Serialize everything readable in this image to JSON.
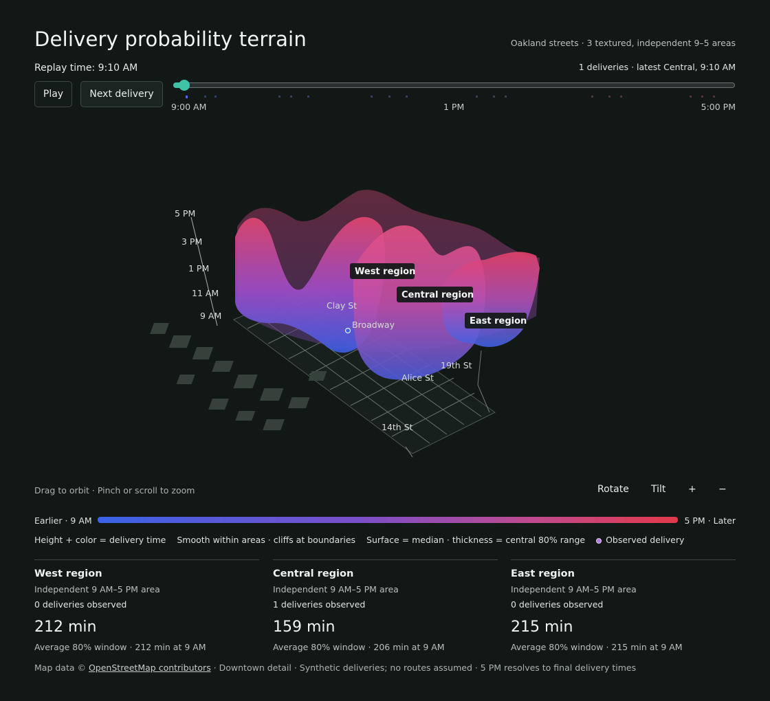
{
  "header": {
    "title": "Delivery probability terrain",
    "subtitle": "Oakland streets · 3 textured, independent 9–5 areas",
    "replay_time": "Replay time: 9:10 AM",
    "deliveries_status": "1 deliveries · latest Central, 9:10 AM"
  },
  "controls": {
    "play_label": "Play",
    "next_label": "Next delivery",
    "slider": {
      "value_fraction": 0.02,
      "tick_labels": [
        "9:00 AM",
        "1 PM",
        "5:00 PM"
      ]
    }
  },
  "terrain": {
    "axis_labels": [
      "5 PM",
      "3 PM",
      "1 PM",
      "11 AM",
      "9 AM"
    ],
    "region_tags": [
      "West region",
      "Central region",
      "East region"
    ],
    "street_labels": [
      "Clay St",
      "Broadway",
      "19th St",
      "Alice St",
      "14th St"
    ]
  },
  "hint": "Drag to orbit · Pinch or scroll to zoom",
  "view_controls": {
    "rotate": "Rotate",
    "tilt": "Tilt",
    "zoom_in": "+",
    "zoom_out": "−"
  },
  "legend": {
    "start": "Earlier · 9 AM",
    "end": "5 PM · Later",
    "colors": [
      "#3a63e6",
      "#7a4fc9",
      "#c04a8e",
      "#e2394a"
    ],
    "notes": [
      "Height + color = delivery time",
      "Smooth within areas · cliffs at boundaries",
      "Surface = median · thickness = central 80% range"
    ],
    "observed": "Observed delivery"
  },
  "regions": [
    {
      "name": "West region",
      "subtitle": "Independent 9 AM–5 PM area",
      "count": "0 deliveries observed",
      "metric": "212 min",
      "window": "Average 80% window · 212 min at 9 AM"
    },
    {
      "name": "Central region",
      "subtitle": "Independent 9 AM–5 PM area",
      "count": "1 deliveries observed",
      "metric": "159 min",
      "window": "Average 80% window · 206 min at 9 AM"
    },
    {
      "name": "East region",
      "subtitle": "Independent 9 AM–5 PM area",
      "count": "0 deliveries observed",
      "metric": "215 min",
      "window": "Average 80% window · 215 min at 9 AM"
    }
  ],
  "footer": {
    "prefix": "Map data © ",
    "osm_link": "OpenStreetMap contributors",
    "suffix": " · Downtown detail · Synthetic deliveries; no routes assumed · 5 PM resolves to final delivery times"
  }
}
